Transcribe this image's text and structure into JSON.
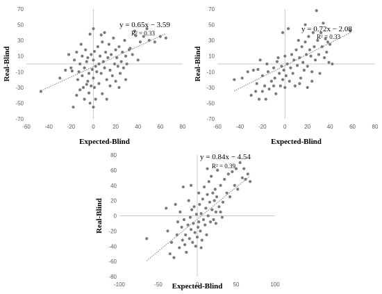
{
  "chart_data": [
    {
      "type": "scatter",
      "xlabel": "Expected-Blind",
      "ylabel": "Real-Blind",
      "xlim": [
        -60,
        80
      ],
      "ylim": [
        -70,
        70
      ],
      "xticks": [
        -60,
        -40,
        -20,
        0,
        20,
        40,
        60,
        80
      ],
      "yticks": [
        -70,
        -50,
        -30,
        -10,
        10,
        30,
        50,
        70
      ],
      "grid": false,
      "trendline": {
        "slope": 0.65,
        "intercept": -3.59,
        "x_range": [
          -47,
          65
        ],
        "style": "dotted"
      },
      "annotations": {
        "equation": "y = 0.65x − 3.59",
        "r2": "R² = 0.33"
      },
      "points": [
        [
          -47,
          -35
        ],
        [
          -30,
          -18
        ],
        [
          -25,
          -8
        ],
        [
          -22,
          12
        ],
        [
          -20,
          -5
        ],
        [
          -18,
          -55
        ],
        [
          -17,
          5
        ],
        [
          -15,
          15
        ],
        [
          -15,
          -40
        ],
        [
          -14,
          -20
        ],
        [
          -13,
          -10
        ],
        [
          -12,
          0
        ],
        [
          -11,
          25
        ],
        [
          -10,
          10
        ],
        [
          -10,
          -15
        ],
        [
          -9,
          -30
        ],
        [
          -8,
          -5
        ],
        [
          -8,
          -45
        ],
        [
          -7,
          18
        ],
        [
          -6,
          3
        ],
        [
          -5,
          -22
        ],
        [
          -5,
          8
        ],
        [
          -4,
          -12
        ],
        [
          -3,
          38
        ],
        [
          -3,
          -50
        ],
        [
          -2,
          12
        ],
        [
          -2,
          -28
        ],
        [
          -1,
          -7
        ],
        [
          0,
          -18
        ],
        [
          0,
          5
        ],
        [
          0,
          45
        ],
        [
          0,
          -55
        ],
        [
          1,
          -30
        ],
        [
          1,
          16
        ],
        [
          2,
          -3
        ],
        [
          3,
          -10
        ],
        [
          4,
          22
        ],
        [
          5,
          0
        ],
        [
          5,
          -25
        ],
        [
          6,
          10
        ],
        [
          7,
          -12
        ],
        [
          8,
          -38
        ],
        [
          8,
          28
        ],
        [
          9,
          3
        ],
        [
          10,
          -5
        ],
        [
          10,
          40
        ],
        [
          11,
          15
        ],
        [
          12,
          -20
        ],
        [
          13,
          8
        ],
        [
          14,
          25
        ],
        [
          15,
          -8
        ],
        [
          15,
          -28
        ],
        [
          16,
          12
        ],
        [
          17,
          -15
        ],
        [
          18,
          33
        ],
        [
          19,
          0
        ],
        [
          20,
          18
        ],
        [
          20,
          -22
        ],
        [
          21,
          8
        ],
        [
          22,
          -3
        ],
        [
          23,
          22
        ],
        [
          24,
          -12
        ],
        [
          25,
          3
        ],
        [
          26,
          15
        ],
        [
          27,
          -5
        ],
        [
          28,
          30
        ],
        [
          29,
          10
        ],
        [
          30,
          0
        ],
        [
          32,
          18
        ],
        [
          33,
          20
        ],
        [
          35,
          12
        ],
        [
          37,
          42
        ],
        [
          38,
          36
        ],
        [
          40,
          5
        ],
        [
          42,
          28
        ],
        [
          45,
          35
        ],
        [
          48,
          45
        ],
        [
          50,
          30
        ],
        [
          55,
          28
        ],
        [
          60,
          35
        ],
        [
          65,
          33
        ],
        [
          -4,
          -37
        ],
        [
          2,
          -45
        ],
        [
          -12,
          -33
        ],
        [
          12,
          -45
        ],
        [
          7,
          37
        ],
        [
          -19,
          -9
        ],
        [
          23,
          -30
        ],
        [
          -6,
          -26
        ],
        [
          29,
          -20
        ]
      ]
    },
    {
      "type": "scatter",
      "xlabel": "Expected-Blind",
      "ylabel": "Real-Blind",
      "xlim": [
        -60,
        80
      ],
      "ylim": [
        -70,
        70
      ],
      "xticks": [
        -60,
        -40,
        -20,
        0,
        20,
        40,
        60,
        80
      ],
      "yticks": [
        -70,
        -50,
        -30,
        -10,
        10,
        30,
        50,
        70
      ],
      "grid": false,
      "trendline": {
        "slope": 0.72,
        "intercept": -2.08,
        "x_range": [
          -45,
          58
        ],
        "style": "dotted"
      },
      "annotations": {
        "equation": "y = 0.72x − 2.08",
        "r2": "R² = 0.33"
      },
      "points": [
        [
          -45,
          -20
        ],
        [
          -38,
          -18
        ],
        [
          -30,
          -40
        ],
        [
          -28,
          -8
        ],
        [
          -25,
          -25
        ],
        [
          -23,
          -45
        ],
        [
          -22,
          5
        ],
        [
          -20,
          -15
        ],
        [
          -20,
          -35
        ],
        [
          -18,
          -28
        ],
        [
          -16,
          0
        ],
        [
          -15,
          -10
        ],
        [
          -14,
          -32
        ],
        [
          -12,
          -22
        ],
        [
          -10,
          -5
        ],
        [
          -9,
          -18
        ],
        [
          -8,
          -38
        ],
        [
          -7,
          3
        ],
        [
          -6,
          8
        ],
        [
          -5,
          -12
        ],
        [
          -4,
          -28
        ],
        [
          -3,
          -3
        ],
        [
          -2,
          40
        ],
        [
          -2,
          -20
        ],
        [
          -1,
          -8
        ],
        [
          0,
          10
        ],
        [
          0,
          -30
        ],
        [
          1,
          -15
        ],
        [
          2,
          0
        ],
        [
          3,
          45
        ],
        [
          4,
          -22
        ],
        [
          5,
          -5
        ],
        [
          6,
          12
        ],
        [
          7,
          -12
        ],
        [
          8,
          5
        ],
        [
          9,
          -28
        ],
        [
          10,
          18
        ],
        [
          11,
          -2
        ],
        [
          12,
          30
        ],
        [
          13,
          8
        ],
        [
          14,
          -18
        ],
        [
          15,
          22
        ],
        [
          16,
          2
        ],
        [
          17,
          -8
        ],
        [
          18,
          28
        ],
        [
          19,
          12
        ],
        [
          20,
          -3
        ],
        [
          21,
          35
        ],
        [
          22,
          18
        ],
        [
          23,
          10
        ],
        [
          24,
          -10
        ],
        [
          25,
          40
        ],
        [
          26,
          22
        ],
        [
          27,
          5
        ],
        [
          28,
          68
        ],
        [
          29,
          30
        ],
        [
          30,
          12
        ],
        [
          31,
          -12
        ],
        [
          32,
          40
        ],
        [
          33,
          22
        ],
        [
          34,
          52
        ],
        [
          35,
          8
        ],
        [
          36,
          32
        ],
        [
          37,
          15
        ],
        [
          38,
          28
        ],
        [
          39,
          2
        ],
        [
          40,
          25
        ],
        [
          42,
          0
        ],
        [
          -33,
          -10
        ],
        [
          -24,
          -7
        ],
        [
          -17,
          -45
        ],
        [
          13,
          -25
        ],
        [
          20,
          -30
        ],
        [
          24,
          -22
        ],
        [
          58,
          42
        ],
        [
          18,
          50
        ],
        [
          -10,
          -28
        ],
        [
          -26,
          -35
        ]
      ]
    },
    {
      "type": "scatter",
      "xlabel": "Expected-Blind",
      "ylabel": "Real-Blind",
      "xlim": [
        -100,
        100
      ],
      "ylim": [
        -80,
        80
      ],
      "xticks": [
        -100,
        -50,
        0,
        50,
        100
      ],
      "yticks": [
        -80,
        -60,
        -40,
        -20,
        0,
        20,
        40,
        60,
        80
      ],
      "grid": false,
      "trendline": {
        "slope": 0.84,
        "intercept": -4.54,
        "x_range": [
          -65,
          68
        ],
        "style": "dotted"
      },
      "annotations": {
        "equation": "y = 0.84x − 4.54",
        "r2": "R² = 0.39"
      },
      "points": [
        [
          -65,
          -30
        ],
        [
          -40,
          10
        ],
        [
          -38,
          -20
        ],
        [
          -35,
          -50
        ],
        [
          -33,
          -35
        ],
        [
          -30,
          -55
        ],
        [
          -28,
          15
        ],
        [
          -26,
          -25
        ],
        [
          -25,
          -8
        ],
        [
          -23,
          -42
        ],
        [
          -22,
          5
        ],
        [
          -20,
          -15
        ],
        [
          -19,
          -32
        ],
        [
          -18,
          38
        ],
        [
          -17,
          -5
        ],
        [
          -15,
          -25
        ],
        [
          -14,
          -48
        ],
        [
          -12,
          -12
        ],
        [
          -11,
          20
        ],
        [
          -10,
          -30
        ],
        [
          -9,
          -2
        ],
        [
          -8,
          -18
        ],
        [
          -7,
          8
        ],
        [
          -6,
          -35
        ],
        [
          -5,
          -10
        ],
        [
          -4,
          12
        ],
        [
          -3,
          -22
        ],
        [
          -2,
          -40
        ],
        [
          -1,
          2
        ],
        [
          0,
          -28
        ],
        [
          1,
          -15
        ],
        [
          2,
          30
        ],
        [
          2,
          -8
        ],
        [
          3,
          15
        ],
        [
          4,
          -20
        ],
        [
          5,
          3
        ],
        [
          6,
          -32
        ],
        [
          7,
          22
        ],
        [
          8,
          -5
        ],
        [
          9,
          38
        ],
        [
          10,
          -12
        ],
        [
          11,
          10
        ],
        [
          12,
          -25
        ],
        [
          13,
          28
        ],
        [
          14,
          0
        ],
        [
          15,
          45
        ],
        [
          16,
          18
        ],
        [
          17,
          -8
        ],
        [
          18,
          52
        ],
        [
          19,
          8
        ],
        [
          20,
          30
        ],
        [
          21,
          -5
        ],
        [
          22,
          20
        ],
        [
          23,
          35
        ],
        [
          24,
          5
        ],
        [
          25,
          25
        ],
        [
          26,
          60
        ],
        [
          28,
          12
        ],
        [
          30,
          40
        ],
        [
          32,
          -2
        ],
        [
          33,
          18
        ],
        [
          35,
          48
        ],
        [
          38,
          30
        ],
        [
          40,
          55
        ],
        [
          42,
          25
        ],
        [
          45,
          58
        ],
        [
          48,
          40
        ],
        [
          50,
          62
        ],
        [
          52,
          35
        ],
        [
          55,
          70
        ],
        [
          58,
          50
        ],
        [
          60,
          62
        ],
        [
          62,
          48
        ],
        [
          65,
          55
        ],
        [
          68,
          45
        ],
        [
          13,
          62
        ],
        [
          5,
          -42
        ],
        [
          -8,
          40
        ],
        [
          -16,
          -38
        ],
        [
          24,
          -10
        ],
        [
          30,
          5
        ]
      ]
    }
  ]
}
